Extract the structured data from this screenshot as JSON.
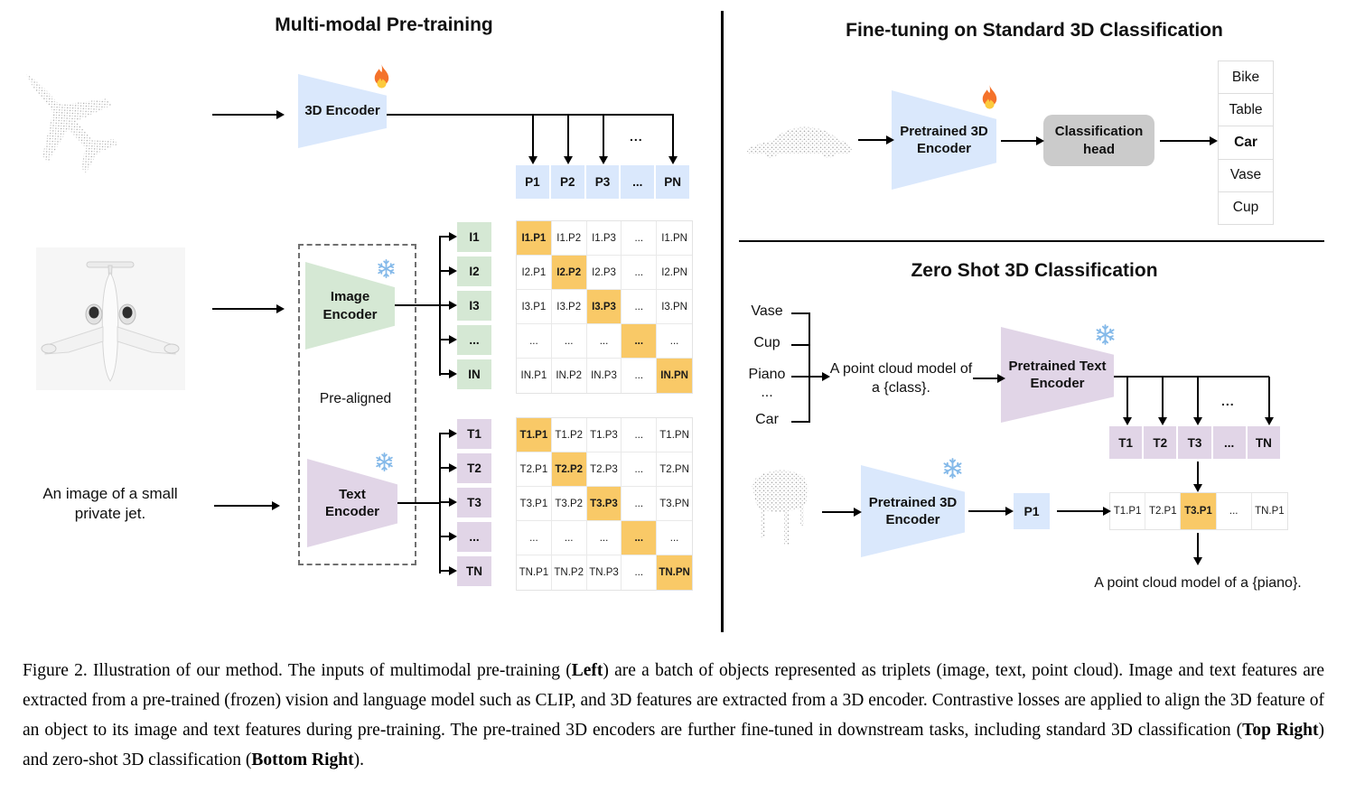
{
  "pretraining": {
    "title": "Multi-modal Pre-training",
    "encoder3d_label": "3D Encoder",
    "image_encoder_label": "Image\nEncoder",
    "text_encoder_label": "Text\nEncoder",
    "prealigned_label": "Pre-aligned",
    "text_input": "An image of a small\nprivate jet.",
    "p_row": [
      "P1",
      "P2",
      "P3",
      "...",
      "PN"
    ],
    "i_col": [
      "I1",
      "I2",
      "I3",
      "...",
      "IN"
    ],
    "t_col": [
      "T1",
      "T2",
      "T3",
      "...",
      "TN"
    ],
    "i_matrix": [
      [
        "I1.P1",
        "I1.P2",
        "I1.P3",
        "...",
        "I1.PN"
      ],
      [
        "I2.P1",
        "I2.P2",
        "I2.P3",
        "...",
        "I2.PN"
      ],
      [
        "I3.P1",
        "I3.P2",
        "I3.P3",
        "...",
        "I3.PN"
      ],
      [
        "...",
        "...",
        "...",
        "...",
        "..."
      ],
      [
        "IN.P1",
        "IN.P2",
        "IN.P3",
        "...",
        "IN.PN"
      ]
    ],
    "t_matrix": [
      [
        "T1.P1",
        "T1.P2",
        "T1.P3",
        "...",
        "T1.PN"
      ],
      [
        "T2.P1",
        "T2.P2",
        "T2.P3",
        "...",
        "T2.PN"
      ],
      [
        "T3.P1",
        "T3.P2",
        "T3.P3",
        "...",
        "T3.PN"
      ],
      [
        "...",
        "...",
        "...",
        "...",
        "..."
      ],
      [
        "TN.P1",
        "TN.P2",
        "TN.P3",
        "...",
        "TN.PN"
      ]
    ]
  },
  "finetune": {
    "title": "Fine-tuning on Standard 3D Classification",
    "encoder_label": "Pretrained 3D\nEncoder",
    "head_label": "Classification\nhead",
    "classes": [
      {
        "label": "Bike",
        "highlight": false
      },
      {
        "label": "Table",
        "highlight": false
      },
      {
        "label": "Car",
        "highlight": true
      },
      {
        "label": "Vase",
        "highlight": false
      },
      {
        "label": "Cup",
        "highlight": false
      }
    ]
  },
  "zeroshot": {
    "title": "Zero Shot 3D Classification",
    "class_list": [
      "Vase",
      "Cup",
      "Piano",
      "...",
      "Car"
    ],
    "prompt": "A point cloud model of\na {class}.",
    "text_encoder_label": "Pretrained Text\nEncoder",
    "encoder3d_label": "Pretrained 3D\nEncoder",
    "p1_label": "P1",
    "t_row": [
      "T1",
      "T2",
      "T3",
      "...",
      "TN"
    ],
    "tp_row": [
      {
        "label": "T1.P1",
        "highlight": false
      },
      {
        "label": "T2.P1",
        "highlight": false
      },
      {
        "label": "T3.P1",
        "highlight": true
      },
      {
        "label": "...",
        "highlight": false
      },
      {
        "label": "TN.P1",
        "highlight": false
      }
    ],
    "result_text": "A point cloud model of a {piano}."
  },
  "misc": {
    "ellipsis": "..."
  },
  "icons": {
    "fire": "🔥",
    "snowflake": "❄"
  },
  "colors": {
    "encoder_blue": "#dae8fc",
    "encoder_green": "#d5e8d4",
    "encoder_purple": "#e1d5e7",
    "highlight_orange": "#f9c967",
    "head_gray": "#cbcbcb"
  },
  "caption": {
    "segments": [
      {
        "text": "Figure 2. Illustration of our method. The inputs of multimodal pre-training (",
        "bold": false
      },
      {
        "text": "Left",
        "bold": true
      },
      {
        "text": ") are a batch of objects represented as triplets (image, text, point cloud). Image and text features are extracted from a pre-trained (frozen) vision and language model such as CLIP, and 3D features are extracted from a 3D encoder. Contrastive losses are applied to align the 3D feature of an object to its image and text features during pre-training. The pre-trained 3D encoders are further fine-tuned in downstream tasks, including standard 3D classification (",
        "bold": false
      },
      {
        "text": "Top Right",
        "bold": true
      },
      {
        "text": ") and zero-shot 3D classification (",
        "bold": false
      },
      {
        "text": "Bottom Right",
        "bold": true
      },
      {
        "text": ").",
        "bold": false
      }
    ]
  }
}
